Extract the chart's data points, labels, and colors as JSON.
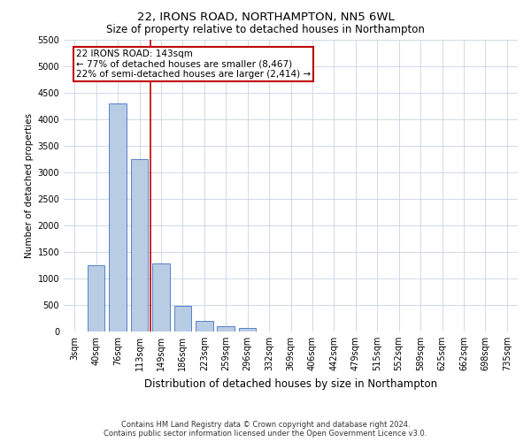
{
  "title_line1": "22, IRONS ROAD, NORTHAMPTON, NN5 6WL",
  "title_line2": "Size of property relative to detached houses in Northampton",
  "xlabel": "Distribution of detached houses by size in Northampton",
  "ylabel": "Number of detached properties",
  "footnote": "Contains HM Land Registry data © Crown copyright and database right 2024.\nContains public sector information licensed under the Open Government Licence v3.0.",
  "categories": [
    "3sqm",
    "40sqm",
    "76sqm",
    "113sqm",
    "149sqm",
    "186sqm",
    "223sqm",
    "259sqm",
    "296sqm",
    "332sqm",
    "369sqm",
    "406sqm",
    "442sqm",
    "479sqm",
    "515sqm",
    "552sqm",
    "589sqm",
    "625sqm",
    "662sqm",
    "698sqm",
    "735sqm"
  ],
  "values": [
    0,
    1250,
    4300,
    3250,
    1280,
    480,
    200,
    100,
    60,
    0,
    0,
    0,
    0,
    0,
    0,
    0,
    0,
    0,
    0,
    0,
    0
  ],
  "bar_color": "#b8cce4",
  "bar_edge_color": "#4472c4",
  "vline_x": 3.5,
  "vline_color": "#c00000",
  "annotation_text": "22 IRONS ROAD: 143sqm\n← 77% of detached houses are smaller (8,467)\n22% of semi-detached houses are larger (2,414) →",
  "annotation_box_color": "#ffffff",
  "annotation_box_edge_color": "#c00000",
  "ylim": [
    0,
    5500
  ],
  "yticks": [
    0,
    500,
    1000,
    1500,
    2000,
    2500,
    3000,
    3500,
    4000,
    4500,
    5000,
    5500
  ],
  "background_color": "#ffffff",
  "grid_color": "#d0d8e8",
  "title1_fontsize": 9.5,
  "title2_fontsize": 8.5,
  "xlabel_fontsize": 8.5,
  "ylabel_fontsize": 7.5,
  "tick_fontsize": 7,
  "footnote_fontsize": 6,
  "annotation_fontsize": 7.5
}
